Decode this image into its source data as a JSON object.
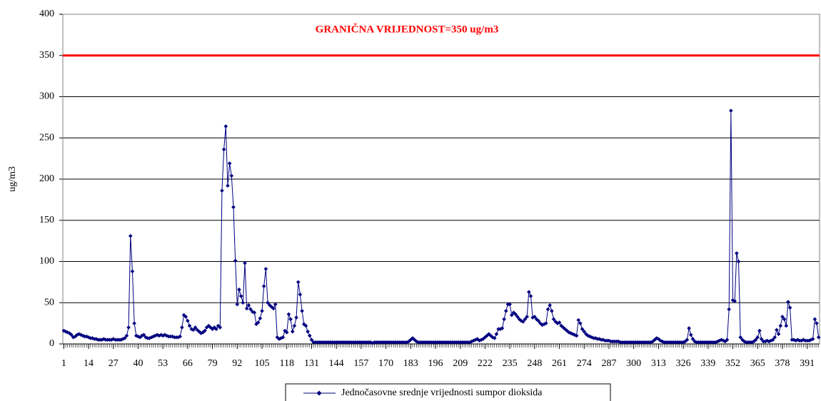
{
  "chart_data": {
    "type": "line",
    "y_label": "ug/m3",
    "threshold": {
      "value": 350,
      "label": "GRANIČNA VRIJEDNOST=350 ug/m3",
      "color": "#ff0000"
    },
    "x": [
      1,
      2,
      3,
      4,
      5,
      6,
      7,
      8,
      9,
      10,
      11,
      12,
      13,
      14,
      15,
      16,
      17,
      18,
      19,
      20,
      21,
      22,
      23,
      24,
      25,
      26,
      27,
      28,
      29,
      30,
      31,
      32,
      33,
      34,
      35,
      36,
      37,
      38,
      39,
      40,
      41,
      42,
      43,
      44,
      45,
      46,
      47,
      48,
      49,
      50,
      51,
      52,
      53,
      54,
      55,
      56,
      57,
      58,
      59,
      60,
      61,
      62,
      63,
      64,
      65,
      66,
      67,
      68,
      69,
      70,
      71,
      72,
      73,
      74,
      75,
      76,
      77,
      78,
      79,
      80,
      81,
      82,
      83,
      84,
      85,
      86,
      87,
      88,
      89,
      90,
      91,
      92,
      93,
      94,
      95,
      96,
      97,
      98,
      99,
      100,
      101,
      102,
      103,
      104,
      105,
      106,
      107,
      108,
      109,
      110,
      111,
      112,
      113,
      114,
      115,
      116,
      117,
      118,
      119,
      120,
      121,
      122,
      123,
      124,
      125,
      126,
      127,
      128,
      129,
      130,
      131,
      132,
      133,
      134,
      135,
      136,
      137,
      138,
      139,
      140,
      141,
      142,
      143,
      144,
      145,
      146,
      147,
      148,
      149,
      150,
      151,
      152,
      153,
      154,
      155,
      156,
      157,
      158,
      159,
      160,
      161,
      162,
      163,
      164,
      165,
      166,
      167,
      168,
      169,
      170,
      171,
      172,
      173,
      174,
      175,
      176,
      177,
      178,
      179,
      180,
      181,
      182,
      183,
      184,
      185,
      186,
      187,
      188,
      189,
      190,
      191,
      192,
      193,
      194,
      195,
      196,
      197,
      198,
      199,
      200,
      201,
      202,
      203,
      204,
      205,
      206,
      207,
      208,
      209,
      210,
      211,
      212,
      213,
      214,
      215,
      216,
      217,
      218,
      219,
      220,
      221,
      222,
      223,
      224,
      225,
      226,
      227,
      228,
      229,
      230,
      231,
      232,
      233,
      234,
      235,
      236,
      237,
      238,
      239,
      240,
      241,
      242,
      243,
      244,
      245,
      246,
      247,
      248,
      249,
      250,
      251,
      252,
      253,
      254,
      255,
      256,
      257,
      258,
      259,
      260,
      261,
      262,
      263,
      264,
      265,
      266,
      267,
      268,
      269,
      270,
      271,
      272,
      273,
      274,
      275,
      276,
      277,
      278,
      279,
      280,
      281,
      282,
      283,
      284,
      285,
      286,
      287,
      288,
      289,
      290,
      291,
      292,
      293,
      294,
      295,
      296,
      297,
      298,
      299,
      300,
      301,
      302,
      303,
      304,
      305,
      306,
      307,
      308,
      309,
      310,
      311,
      312,
      313,
      314,
      315,
      316,
      317,
      318,
      319,
      320,
      321,
      322,
      323,
      324,
      325,
      326,
      327,
      328,
      329,
      330,
      331,
      332,
      333,
      334,
      335,
      336,
      337,
      338,
      339,
      340,
      341,
      342,
      343,
      344,
      345,
      346,
      347,
      348,
      349,
      350,
      351,
      352,
      353,
      354,
      355,
      356,
      357,
      358,
      359,
      360,
      361,
      362,
      363,
      364,
      365,
      366,
      367,
      368,
      369,
      370,
      371,
      372,
      373,
      374,
      375,
      376,
      377,
      378,
      379,
      380,
      381,
      382,
      383,
      384,
      385,
      386,
      387,
      388,
      389,
      390,
      391,
      392,
      393,
      394,
      395,
      396,
      397
    ],
    "series": [
      {
        "name": "Jednočasovne srednje vrijednosti sumpor dioksida",
        "color": "#000080",
        "values": [
          16,
          15,
          14,
          13,
          11,
          8,
          9,
          11,
          12,
          11,
          10,
          9,
          9,
          8,
          7,
          7,
          6,
          6,
          5,
          5,
          5,
          6,
          5,
          5,
          5,
          5,
          6,
          5,
          5,
          5,
          5,
          6,
          7,
          10,
          20,
          131,
          88,
          25,
          10,
          9,
          8,
          10,
          11,
          8,
          7,
          7,
          8,
          9,
          10,
          11,
          10,
          11,
          10,
          11,
          10,
          9,
          9,
          9,
          8,
          8,
          8,
          9,
          20,
          35,
          33,
          28,
          22,
          18,
          17,
          20,
          17,
          15,
          13,
          14,
          16,
          20,
          22,
          20,
          18,
          20,
          18,
          22,
          20,
          186,
          236,
          264,
          192,
          219,
          204,
          166,
          101,
          48,
          66,
          58,
          50,
          98,
          43,
          47,
          42,
          39,
          38,
          24,
          26,
          31,
          40,
          70,
          91,
          50,
          47,
          45,
          43,
          48,
          8,
          6,
          7,
          8,
          16,
          14,
          36,
          30,
          15,
          22,
          32,
          75,
          60,
          40,
          24,
          22,
          15,
          10,
          5,
          2,
          2,
          2,
          2,
          2,
          2,
          2,
          2,
          2,
          2,
          2,
          2,
          2,
          2,
          2,
          2,
          2,
          2,
          2,
          2,
          2,
          2,
          2,
          2,
          2,
          2,
          2,
          2,
          2,
          2,
          2,
          1,
          2,
          2,
          2,
          2,
          2,
          2,
          2,
          2,
          2,
          2,
          2,
          2,
          2,
          2,
          2,
          2,
          2,
          2,
          3,
          5,
          7,
          5,
          3,
          2,
          2,
          2,
          2,
          2,
          2,
          2,
          2,
          2,
          2,
          2,
          2,
          2,
          2,
          2,
          2,
          2,
          2,
          2,
          2,
          2,
          2,
          2,
          2,
          2,
          2,
          2,
          2,
          3,
          4,
          5,
          6,
          4,
          5,
          6,
          8,
          10,
          12,
          10,
          8,
          7,
          12,
          18,
          18,
          19,
          30,
          40,
          48,
          48,
          35,
          38,
          36,
          33,
          30,
          28,
          27,
          30,
          33,
          63,
          58,
          32,
          33,
          30,
          28,
          25,
          23,
          24,
          25,
          42,
          47,
          40,
          30,
          27,
          25,
          26,
          22,
          20,
          18,
          16,
          14,
          13,
          12,
          11,
          10,
          29,
          25,
          18,
          15,
          12,
          10,
          9,
          8,
          7,
          7,
          6,
          6,
          5,
          5,
          4,
          4,
          4,
          3,
          3,
          3,
          3,
          3,
          2,
          2,
          2,
          2,
          2,
          2,
          2,
          2,
          2,
          2,
          2,
          2,
          2,
          2,
          2,
          2,
          2,
          3,
          5,
          7,
          6,
          4,
          3,
          2,
          2,
          2,
          2,
          2,
          2,
          2,
          2,
          2,
          2,
          2,
          3,
          5,
          19,
          11,
          6,
          3,
          2,
          2,
          2,
          2,
          2,
          2,
          2,
          2,
          2,
          2,
          2,
          3,
          4,
          5,
          4,
          3,
          5,
          42,
          283,
          53,
          52,
          110,
          100,
          8,
          5,
          3,
          2,
          2,
          2,
          2,
          3,
          5,
          8,
          16,
          6,
          3,
          3,
          4,
          3,
          4,
          5,
          8,
          17,
          12,
          22,
          33,
          30,
          22,
          51,
          44,
          5,
          5,
          4,
          5,
          4,
          4,
          5,
          4,
          4,
          4,
          5,
          6,
          30,
          25,
          8
        ]
      }
    ],
    "xlim": [
      0.5,
      397.5
    ],
    "xticks": [
      1,
      14,
      27,
      40,
      53,
      66,
      79,
      92,
      105,
      118,
      131,
      144,
      157,
      170,
      183,
      196,
      209,
      222,
      235,
      248,
      261,
      274,
      287,
      300,
      313,
      326,
      339,
      352,
      365,
      378,
      391
    ],
    "ylim": [
      0,
      400
    ],
    "yticks": [
      0,
      50,
      100,
      150,
      200,
      250,
      300,
      350,
      400
    ],
    "grid": true
  }
}
